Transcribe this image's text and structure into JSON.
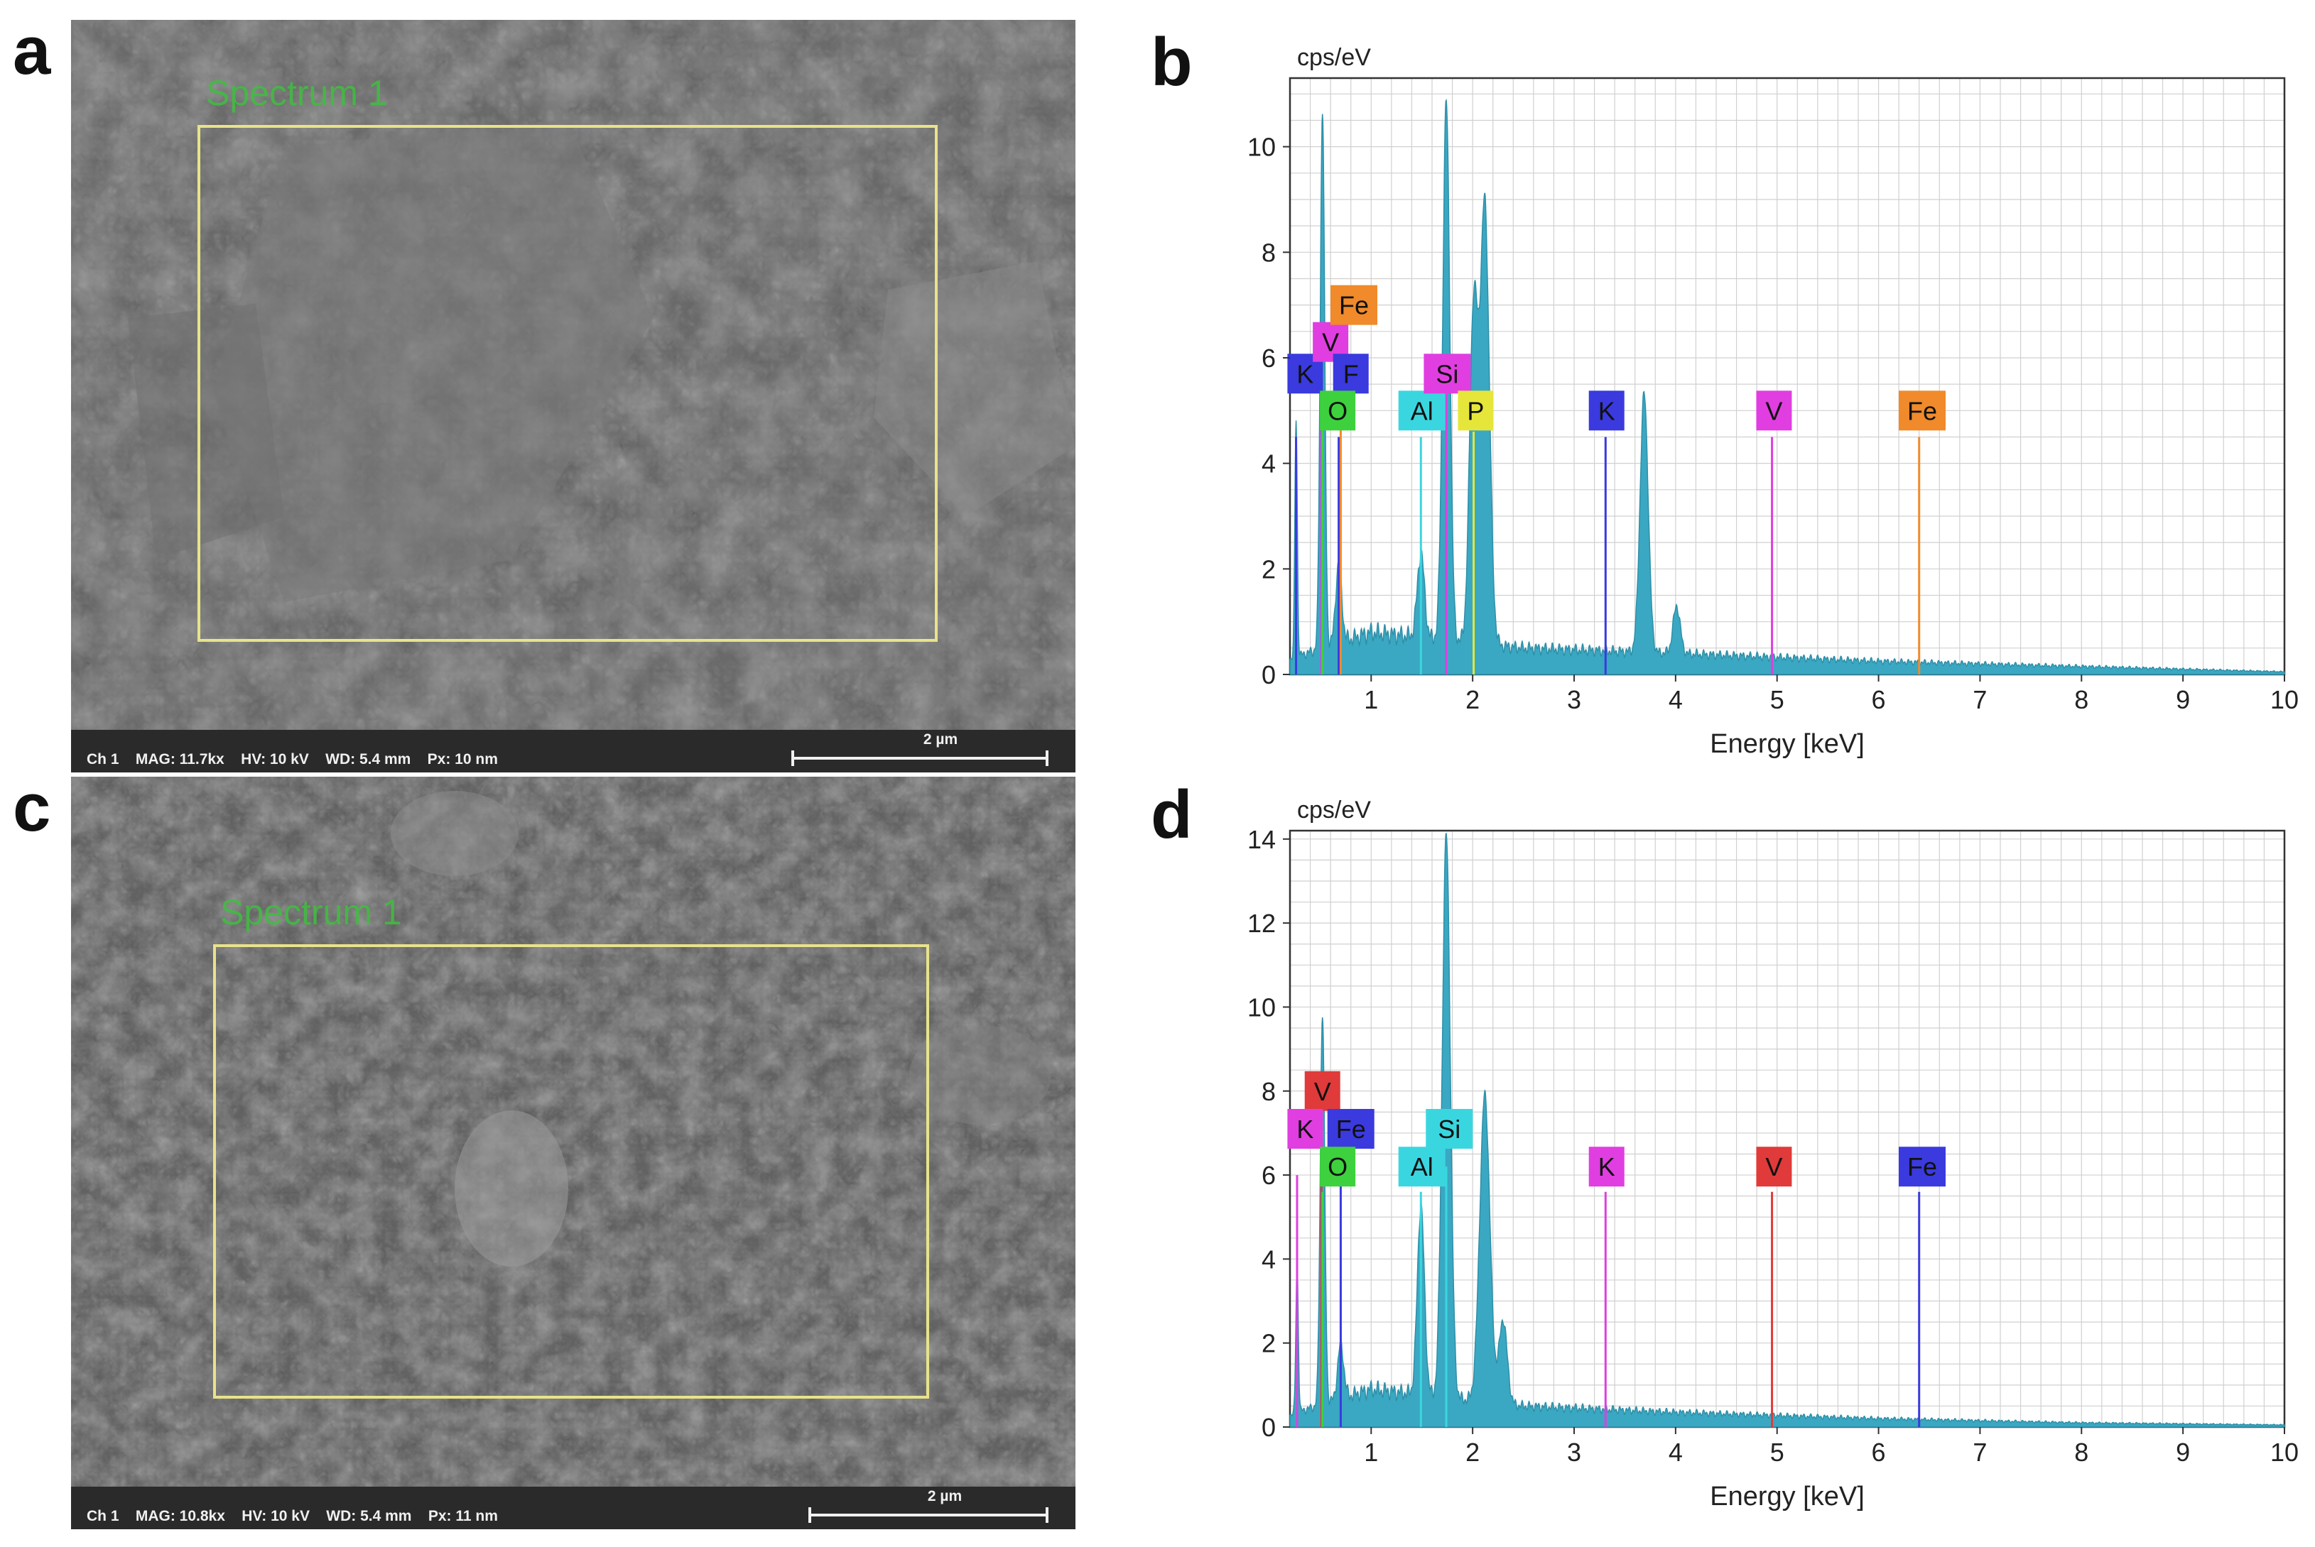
{
  "panels": {
    "a": {
      "letter": "a",
      "spectrum_label": "Spectrum 1",
      "info": "Ch 1    MAG: 11.7kx    HV: 10 kV    WD: 5.4 mm    Px: 10 nm",
      "scalebar": "2 µm"
    },
    "c": {
      "letter": "c",
      "spectrum_label": "Spectrum 1",
      "info": "Ch 1    MAG: 10.8kx    HV: 10 kV    WD: 5.4 mm    Px: 11 nm",
      "scalebar": "2 µm"
    },
    "b": {
      "letter": "b"
    },
    "d": {
      "letter": "d"
    }
  },
  "colors": {
    "spectrum_fill": "#3aa8c2",
    "grid": "#d0d0d0",
    "K_b": "#3a3adf",
    "F": "#3a3adf",
    "V_b": "#e03ee0",
    "Fe_b": "#f08a2a",
    "O": "#3ed13e",
    "Al": "#3ad6e0",
    "Si_b": "#e03ee0",
    "P": "#e6e63a",
    "K_d": "#e03ee0",
    "V_d": "#e03a3a",
    "Fe_d": "#3a3adf",
    "Si_d": "#3ad6e0"
  },
  "chart_data": [
    {
      "id": "b",
      "type": "area",
      "title": "",
      "ylabel": "cps/eV",
      "xlabel": "Energy [keV]",
      "xlim": [
        0.2,
        10
      ],
      "ylim": [
        0,
        11.3
      ],
      "xticks": [
        1,
        2,
        3,
        4,
        5,
        6,
        7,
        8,
        9,
        10
      ],
      "yticks": [
        0,
        2,
        4,
        6,
        8,
        10
      ],
      "grid": true,
      "peaks": [
        {
          "x": 0.26,
          "y": 4.5,
          "w": 0.012
        },
        {
          "x": 0.52,
          "y": 10.2,
          "w": 0.022
        },
        {
          "x": 0.68,
          "y": 1.5,
          "w": 0.03
        },
        {
          "x": 1.49,
          "y": 1.6,
          "w": 0.035
        },
        {
          "x": 1.74,
          "y": 10.2,
          "w": 0.035
        },
        {
          "x": 2.01,
          "y": 6.3,
          "w": 0.04
        },
        {
          "x": 2.12,
          "y": 8.3,
          "w": 0.045
        },
        {
          "x": 3.69,
          "y": 4.9,
          "w": 0.04
        },
        {
          "x": 4.01,
          "y": 0.9,
          "w": 0.035
        }
      ],
      "background": [
        [
          0.2,
          0.3
        ],
        [
          1.0,
          0.8
        ],
        [
          2.5,
          0.5
        ],
        [
          4.0,
          0.4
        ],
        [
          6.0,
          0.25
        ],
        [
          8.0,
          0.15
        ],
        [
          10.0,
          0.05
        ]
      ],
      "element_lines": [
        {
          "element": "K",
          "x": 0.26,
          "y": 4.5,
          "color_key": "K_b"
        },
        {
          "element": "V",
          "x": 0.51,
          "y": 5.5,
          "color_key": "V_b"
        },
        {
          "element": "O",
          "x": 0.52,
          "y": 4.8,
          "color_key": "O"
        },
        {
          "element": "F",
          "x": 0.68,
          "y": 4.5,
          "color_key": "F"
        },
        {
          "element": "Fe",
          "x": 0.7,
          "y": 6.2,
          "color_key": "Fe_b"
        },
        {
          "element": "Al",
          "x": 1.49,
          "y": 4.5,
          "color_key": "Al"
        },
        {
          "element": "Si",
          "x": 1.74,
          "y": 5.5,
          "color_key": "Si_b"
        },
        {
          "element": "P",
          "x": 2.01,
          "y": 4.6,
          "color_key": "P"
        },
        {
          "element": "K",
          "x": 3.31,
          "y": 4.5,
          "color_key": "K_b"
        },
        {
          "element": "V",
          "x": 4.95,
          "y": 4.5,
          "color_key": "V_b"
        },
        {
          "element": "Fe",
          "x": 6.4,
          "y": 4.5,
          "color_key": "Fe_b"
        }
      ],
      "labels": [
        {
          "text": "K",
          "x": 0.35,
          "y": 5.7,
          "color_key": "K_b"
        },
        {
          "text": "V",
          "x": 0.6,
          "y": 6.3,
          "color_key": "V_b"
        },
        {
          "text": "F",
          "x": 0.8,
          "y": 5.7,
          "color_key": "F"
        },
        {
          "text": "Fe",
          "x": 0.83,
          "y": 7.0,
          "color_key": "Fe_b"
        },
        {
          "text": "O",
          "x": 0.67,
          "y": 5.0,
          "color_key": "O"
        },
        {
          "text": "Al",
          "x": 1.5,
          "y": 5.0,
          "color_key": "Al"
        },
        {
          "text": "Si",
          "x": 1.75,
          "y": 5.7,
          "color_key": "Si_b"
        },
        {
          "text": "P",
          "x": 2.03,
          "y": 5.0,
          "color_key": "P"
        },
        {
          "text": "K",
          "x": 3.32,
          "y": 5.0,
          "color_key": "K_b"
        },
        {
          "text": "V",
          "x": 4.97,
          "y": 5.0,
          "color_key": "V_b"
        },
        {
          "text": "Fe",
          "x": 6.43,
          "y": 5.0,
          "color_key": "Fe_b"
        }
      ]
    },
    {
      "id": "d",
      "type": "area",
      "title": "",
      "ylabel": "cps/eV",
      "xlabel": "Energy [keV]",
      "xlim": [
        0.2,
        10
      ],
      "ylim": [
        0,
        14.2
      ],
      "xticks": [
        1,
        2,
        3,
        4,
        5,
        6,
        7,
        8,
        9,
        10
      ],
      "yticks": [
        0,
        2,
        4,
        6,
        8,
        10,
        12,
        14
      ],
      "grid": true,
      "peaks": [
        {
          "x": 0.27,
          "y": 3.5,
          "w": 0.012
        },
        {
          "x": 0.52,
          "y": 9.3,
          "w": 0.022
        },
        {
          "x": 0.7,
          "y": 1.3,
          "w": 0.03
        },
        {
          "x": 1.49,
          "y": 4.5,
          "w": 0.035
        },
        {
          "x": 1.74,
          "y": 13.4,
          "w": 0.04
        },
        {
          "x": 2.12,
          "y": 7.3,
          "w": 0.05
        },
        {
          "x": 2.3,
          "y": 2.0,
          "w": 0.04
        }
      ],
      "background": [
        [
          0.2,
          0.3
        ],
        [
          1.0,
          0.9
        ],
        [
          2.5,
          0.5
        ],
        [
          4.0,
          0.35
        ],
        [
          6.0,
          0.2
        ],
        [
          8.0,
          0.1
        ],
        [
          10.0,
          0.05
        ]
      ],
      "element_lines": [
        {
          "element": "K",
          "x": 0.27,
          "y": 6.0,
          "color_key": "K_d"
        },
        {
          "element": "V",
          "x": 0.51,
          "y": 6.5,
          "color_key": "V_d"
        },
        {
          "element": "O",
          "x": 0.52,
          "y": 5.6,
          "color_key": "O"
        },
        {
          "element": "Fe",
          "x": 0.7,
          "y": 6.0,
          "color_key": "Fe_d"
        },
        {
          "element": "Al",
          "x": 1.49,
          "y": 5.6,
          "color_key": "Al"
        },
        {
          "element": "Si",
          "x": 1.74,
          "y": 6.2,
          "color_key": "Si_d"
        },
        {
          "element": "K",
          "x": 3.31,
          "y": 5.6,
          "color_key": "K_d"
        },
        {
          "element": "V",
          "x": 4.95,
          "y": 5.6,
          "color_key": "V_d"
        },
        {
          "element": "Fe",
          "x": 6.4,
          "y": 5.6,
          "color_key": "Fe_d"
        }
      ],
      "labels": [
        {
          "text": "V",
          "x": 0.52,
          "y": 8.0,
          "color_key": "V_d"
        },
        {
          "text": "K",
          "x": 0.35,
          "y": 7.1,
          "color_key": "K_d"
        },
        {
          "text": "Fe",
          "x": 0.8,
          "y": 7.1,
          "color_key": "Fe_d"
        },
        {
          "text": "O",
          "x": 0.67,
          "y": 6.2,
          "color_key": "O"
        },
        {
          "text": "Al",
          "x": 1.5,
          "y": 6.2,
          "color_key": "Al"
        },
        {
          "text": "Si",
          "x": 1.77,
          "y": 7.1,
          "color_key": "Si_d"
        },
        {
          "text": "K",
          "x": 3.32,
          "y": 6.2,
          "color_key": "K_d"
        },
        {
          "text": "V",
          "x": 4.97,
          "y": 6.2,
          "color_key": "V_d"
        },
        {
          "text": "Fe",
          "x": 6.43,
          "y": 6.2,
          "color_key": "Fe_d"
        }
      ]
    }
  ]
}
